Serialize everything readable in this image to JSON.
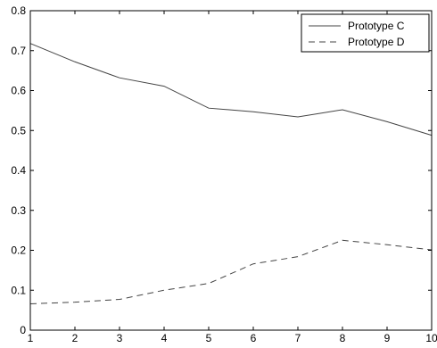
{
  "chart_data": {
    "type": "line",
    "title": "",
    "xlabel": "",
    "ylabel": "",
    "x": [
      1,
      2,
      3,
      4,
      5,
      6,
      7,
      8,
      9,
      10
    ],
    "xlim": [
      1,
      10
    ],
    "ylim": [
      0,
      0.8
    ],
    "xticks": [
      "1",
      "2",
      "3",
      "4",
      "5",
      "6",
      "7",
      "8",
      "9",
      "10"
    ],
    "yticks": [
      "0",
      "0.1",
      "0.2",
      "0.3",
      "0.4",
      "0.5",
      "0.6",
      "0.7",
      "0.8"
    ],
    "grid": false,
    "legend_position": "top-right",
    "series": [
      {
        "name": "Prototype C",
        "style": "solid",
        "color": "#444444",
        "values": [
          0.718,
          0.672,
          0.632,
          0.611,
          0.556,
          0.547,
          0.534,
          0.552,
          0.522,
          0.488
        ]
      },
      {
        "name": "Prototype D",
        "style": "dashed",
        "color": "#444444",
        "values": [
          0.066,
          0.07,
          0.077,
          0.1,
          0.117,
          0.166,
          0.184,
          0.225,
          0.214,
          0.201
        ]
      }
    ]
  }
}
